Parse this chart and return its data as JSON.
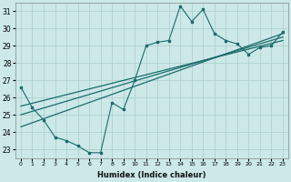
{
  "xlabel": "Humidex (Indice chaleur)",
  "background_color": "#cce8e8",
  "grid_color": "#aacccc",
  "line_color": "#1a6b6b",
  "xlim": [
    -0.5,
    23.5
  ],
  "ylim": [
    22.5,
    31.5
  ],
  "yticks": [
    23,
    24,
    25,
    26,
    27,
    28,
    29,
    30,
    31
  ],
  "xticks": [
    0,
    1,
    2,
    3,
    4,
    5,
    6,
    7,
    8,
    9,
    10,
    11,
    12,
    13,
    14,
    15,
    16,
    17,
    18,
    19,
    20,
    21,
    22,
    23
  ],
  "zigzag": [
    26.6,
    25.4,
    24.7,
    23.7,
    23.5,
    23.2,
    22.8,
    22.8,
    25.7,
    25.3,
    27.0,
    29.0,
    29.2,
    29.3,
    31.3,
    30.4,
    31.1,
    29.7,
    29.3,
    29.1,
    28.5,
    28.9,
    29.0,
    29.8
  ],
  "line1": [
    25.5,
    29.3
  ],
  "line2": [
    25.0,
    29.5
  ],
  "line3": [
    24.3,
    29.7
  ],
  "line1_x": [
    0,
    23
  ],
  "line2_x": [
    0,
    23
  ],
  "line3_x": [
    0,
    23
  ]
}
